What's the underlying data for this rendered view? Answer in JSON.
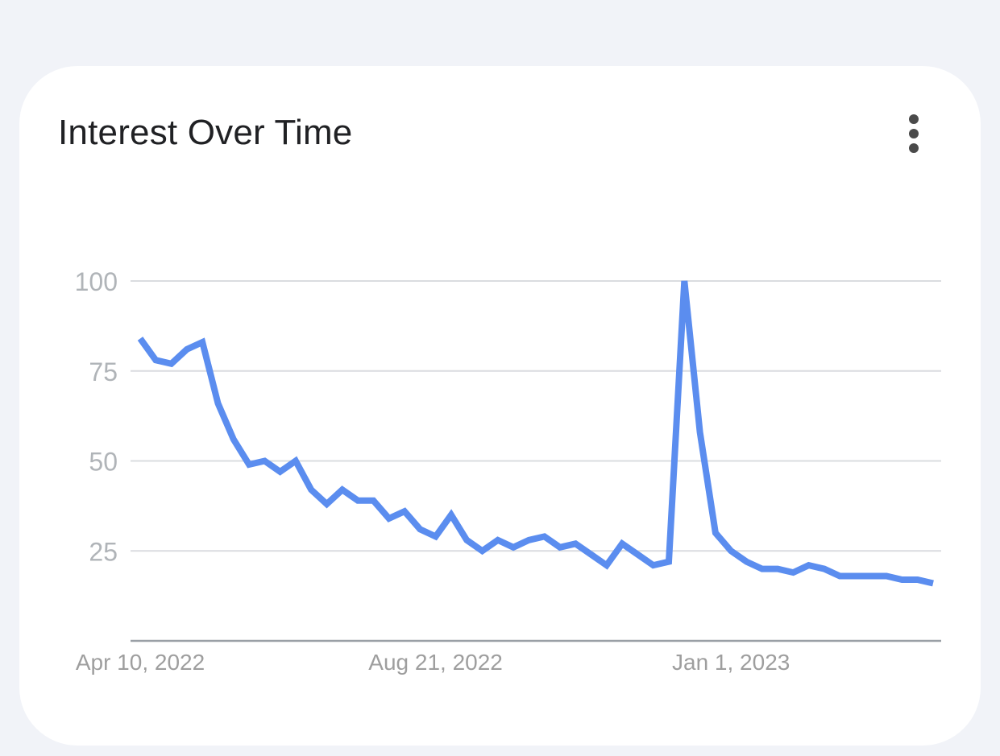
{
  "card": {
    "title": "Interest Over Time",
    "menu_icon": "more-vert-icon"
  },
  "colors": {
    "line": "#5b8def",
    "grid": "#dadce0",
    "axis": "#9aa0a6",
    "tick_text": "#b0b4b8",
    "date_text": "#9e9e9e"
  },
  "chart_data": {
    "type": "line",
    "title": "Interest Over Time",
    "xlabel": "",
    "ylabel": "",
    "ylim": [
      0,
      100
    ],
    "yticks": [
      100,
      75,
      50,
      25
    ],
    "x_tick_labels": [
      {
        "label": "Apr 10, 2022",
        "index": 0
      },
      {
        "label": "Aug 21, 2022",
        "index": 19
      },
      {
        "label": "Jan 1, 2023",
        "index": 38
      }
    ],
    "grid": true,
    "series": [
      {
        "values": [
          84,
          78,
          77,
          81,
          83,
          66,
          56,
          49,
          50,
          47,
          50,
          42,
          38,
          42,
          39,
          39,
          34,
          36,
          31,
          29,
          35,
          28,
          25,
          28,
          26,
          28,
          29,
          26,
          27,
          24,
          21,
          27,
          24,
          21,
          22,
          100,
          58,
          30,
          25,
          22,
          20,
          20,
          19,
          21,
          20,
          18,
          18,
          18,
          18,
          17,
          17,
          16
        ]
      }
    ]
  }
}
